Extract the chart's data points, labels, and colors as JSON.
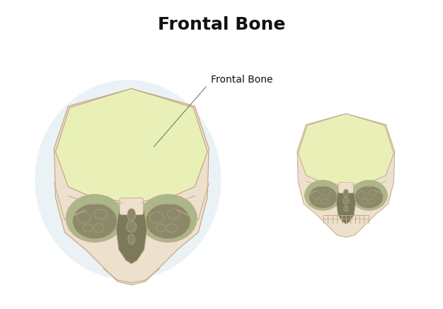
{
  "title": "Frontal Bone",
  "label_frontal_bone": "Frontal Bone",
  "bg_color": "#ffffff",
  "title_fontsize": 18,
  "label_fontsize": 10,
  "skull_fill": "#ede0cc",
  "skull_stroke": "#c4aa88",
  "frontal_bone_fill": "#e8f0b8",
  "orbit_fill": "#a8b888",
  "orbit_content_fill": "#8a8a6a",
  "nasal_fill": "#7a7a5a",
  "bg_circle_fill": "#dce8f0",
  "annotation_line_color": "#777777",
  "stroke_lw": 0.9
}
